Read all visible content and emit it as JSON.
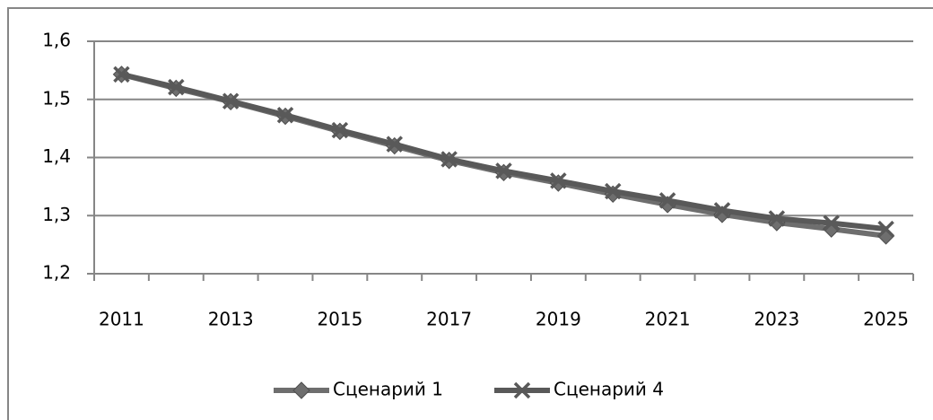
{
  "chart_data": {
    "type": "line",
    "categories": [
      "2011",
      null,
      "2013",
      null,
      "2015",
      null,
      "2017",
      null,
      "2019",
      null,
      "2021",
      null,
      "2023",
      null,
      "2025"
    ],
    "series": [
      {
        "name": "Сценарий 1",
        "color": "#6e6e6e",
        "marker": "diamond",
        "values": [
          1.543,
          1.519,
          1.496,
          1.471,
          1.445,
          1.42,
          1.395,
          1.374,
          1.356,
          1.337,
          1.319,
          1.302,
          1.288,
          1.277,
          1.265
        ]
      },
      {
        "name": "Сценарий 4",
        "color": "#595959",
        "marker": "x",
        "values": [
          1.543,
          1.521,
          1.497,
          1.473,
          1.447,
          1.423,
          1.397,
          1.377,
          1.36,
          1.342,
          1.326,
          1.309,
          1.295,
          1.287,
          1.277
        ]
      }
    ],
    "ylim": [
      1.2,
      1.6
    ],
    "yticks": [
      {
        "value": 1.2,
        "label": "1,2"
      },
      {
        "value": 1.3,
        "label": "1,3"
      },
      {
        "value": 1.4,
        "label": "1,4"
      },
      {
        "value": 1.5,
        "label": "1,5"
      },
      {
        "value": 1.6,
        "label": "1,6"
      }
    ],
    "grid": true,
    "legend": "bottom"
  }
}
